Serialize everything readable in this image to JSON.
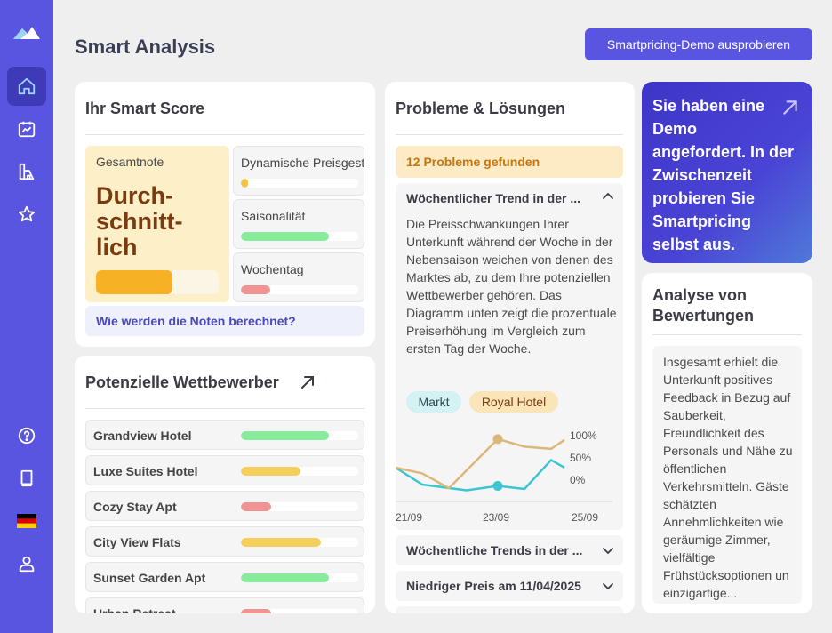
{
  "header": {
    "title": "Smart Analysis",
    "demo_button": "Smartpricing-Demo ausprobieren"
  },
  "sidebar": {
    "items": [
      {
        "icon": "home-icon",
        "active": true
      },
      {
        "icon": "chart-calendar-icon",
        "active": false
      },
      {
        "icon": "building-icon",
        "active": false
      },
      {
        "icon": "star-icon",
        "active": false
      }
    ],
    "bottom": [
      {
        "icon": "help-icon"
      },
      {
        "icon": "book-icon"
      },
      {
        "icon": "german-flag-icon"
      },
      {
        "icon": "user-icon"
      }
    ]
  },
  "score": {
    "title": "Ihr Smart Score",
    "overall_label": "Gesamtnote",
    "overall_value": "Durch-schnitt-lich",
    "overall_level": 0.62,
    "factors": [
      {
        "name": "Dynamische Preisgestaltung",
        "level": 0.06,
        "color": "#f5c344"
      },
      {
        "name": "Saisonalität",
        "level": 0.75,
        "color": "#86eb9a"
      },
      {
        "name": "Wochentag",
        "level": 0.25,
        "color": "#f19393"
      }
    ],
    "calc_link": "Wie werden die Noten berechnet?"
  },
  "competitors": {
    "title": "Potenzielle Wettbewerber",
    "items": [
      {
        "name": "Grandview Hotel",
        "level": 0.75,
        "color": "#86eb9a"
      },
      {
        "name": "Luxe Suites Hotel",
        "level": 0.51,
        "color": "#f5cf5e"
      },
      {
        "name": "Cozy Stay Apt",
        "level": 0.26,
        "color": "#f19393"
      },
      {
        "name": "City View Flats",
        "level": 0.68,
        "color": "#f5cf5e"
      },
      {
        "name": "Sunset Garden Apt",
        "level": 0.75,
        "color": "#86eb9a"
      },
      {
        "name": "Urban Retreat",
        "level": 0.26,
        "color": "#f19393"
      }
    ]
  },
  "problems": {
    "title": "Probleme & Lösungen",
    "badge": "12 Probleme gefunden",
    "open_item": {
      "title": "Wöchentlicher Trend in der ...",
      "text": "Die Preisschwankungen Ihrer Unterkunft während der Woche in der Nebensaison weichen von denen des Marktes ab, zu dem Ihre potenziellen Wettbewerber gehören. Das Diagramm unten zeigt die prozentuale Preiserhöhung im Vergleich zum ersten Tag der Woche.",
      "tags": [
        "Markt",
        "Royal Hotel"
      ]
    },
    "collapsed_items": [
      "Wöchentliche Trends in der ...",
      "Niedriger Preis am 11/04/2025"
    ]
  },
  "chart_data": {
    "type": "line",
    "x": [
      "21/09",
      "22/09",
      "23/09",
      "24/09",
      "25/09"
    ],
    "xticks": [
      "21/09",
      "23/09",
      "25/09"
    ],
    "yticks": [
      "100%",
      "50%",
      "0%"
    ],
    "ylim": [
      0,
      100
    ],
    "series": [
      {
        "name": "Markt",
        "color": "#3cc6d2",
        "x": [
          0,
          1.2,
          3.2,
          4.6,
          5.8,
          7.0,
          7.6
        ],
        "values": [
          38,
          0,
          -13,
          -3,
          -10,
          55,
          38
        ]
      },
      {
        "name": "Royal Hotel",
        "color": "#dcb77a",
        "x": [
          0,
          1.2,
          2.4,
          4.6,
          5.8,
          7.0,
          7.6
        ],
        "values": [
          38,
          25,
          -8,
          102,
          85,
          80,
          100
        ]
      }
    ],
    "highlight_x": 4.6
  },
  "promo": {
    "text": "Sie haben eine Demo angefordert. In der Zwischenzeit probieren Sie Smartpricing selbst aus."
  },
  "reviews": {
    "title": "Analyse von Bewertungen",
    "text": "Insgesamt erhielt die Unterkunft positives Feedback in Bezug auf Sauberkeit, Freundlichkeit des Personals und Nähe zu öffentlichen Verkehrsmitteln. Gäste schätzten Annehmlichkeiten wie geräumige Zimmer, vielfältige Frühstücksoptionen un einzigartige..."
  }
}
